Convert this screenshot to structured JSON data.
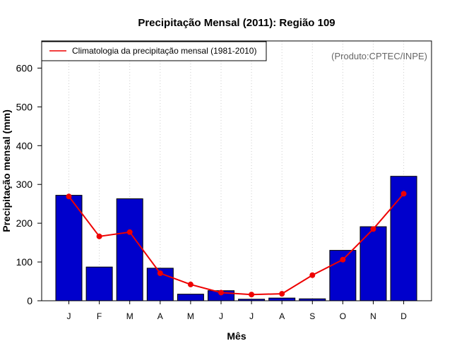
{
  "chart_data": {
    "type": "bar",
    "title": "Precipitação Mensal (2011): Região 109",
    "xlabel": "Mês",
    "ylabel": "Precipitação mensal (mm)",
    "ylim": [
      0,
      670
    ],
    "yticks": [
      0,
      100,
      200,
      300,
      400,
      500,
      600
    ],
    "grid": "vertical-dotted",
    "categories": [
      "J",
      "F",
      "M",
      "A",
      "M",
      "J",
      "J",
      "A",
      "S",
      "O",
      "N",
      "D"
    ],
    "series": [
      {
        "name": "Precipitação mensal (2011)",
        "kind": "bar",
        "color": "#0000cc",
        "values": [
          272,
          87,
          263,
          84,
          17,
          26,
          4,
          7,
          5,
          130,
          191,
          321
        ]
      },
      {
        "name": "Climatologia da precipitação mensal (1981-2010)",
        "kind": "line",
        "color": "#ee0000",
        "values": [
          269,
          166,
          177,
          71,
          42,
          21,
          16,
          18,
          66,
          106,
          185,
          276
        ]
      }
    ],
    "legend": {
      "position": "top-left",
      "entries": [
        "Climatologia da precipitação mensal (1981-2010)"
      ]
    },
    "annotation": "(Produto:CPTEC/INPE)"
  }
}
